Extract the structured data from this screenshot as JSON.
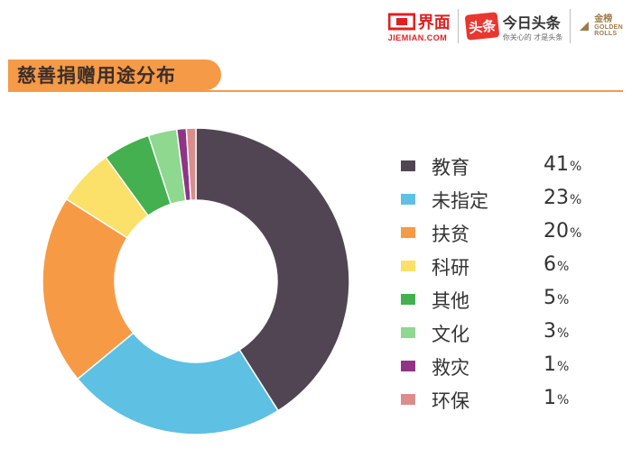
{
  "header": {
    "jiemian": {
      "name": "界面",
      "sub": "JIEMIAN.COM"
    },
    "toutiao": {
      "badge": "头条",
      "name": "今日头条",
      "slogan": "你关心的 才是头条"
    },
    "golden": {
      "cn": "金榜",
      "en1": "GOLDEN",
      "en2": "ROLLS"
    }
  },
  "title": "慈善捐赠用途分布",
  "colors": {
    "accent": "#f59a46",
    "brand_red": "#e02020",
    "gold": "#9e7a4a"
  },
  "chart_data": {
    "type": "pie",
    "variant": "donut",
    "title": "慈善捐赠用途分布",
    "unit": "%",
    "legend_position": "right",
    "categories": [
      "教育",
      "未指定",
      "扶贫",
      "科研",
      "其他",
      "文化",
      "救灾",
      "环保"
    ],
    "values": [
      41,
      23,
      20,
      6,
      5,
      3,
      1,
      1
    ],
    "colors": [
      "#514553",
      "#5ec0e2",
      "#f79a46",
      "#fbe06a",
      "#44b04f",
      "#8ed88f",
      "#8f3585",
      "#d98e8c"
    ],
    "slices": [
      {
        "label": "教育",
        "value": 41,
        "color": "#514553"
      },
      {
        "label": "未指定",
        "value": 23,
        "color": "#5ec0e2"
      },
      {
        "label": "扶贫",
        "value": 20,
        "color": "#f79a46"
      },
      {
        "label": "科研",
        "value": 6,
        "color": "#fbe06a"
      },
      {
        "label": "其他",
        "value": 5,
        "color": "#44b04f"
      },
      {
        "label": "文化",
        "value": 3,
        "color": "#8ed88f"
      },
      {
        "label": "救灾",
        "value": 1,
        "color": "#8f3585"
      },
      {
        "label": "环保",
        "value": 1,
        "color": "#d98e8c"
      }
    ]
  }
}
